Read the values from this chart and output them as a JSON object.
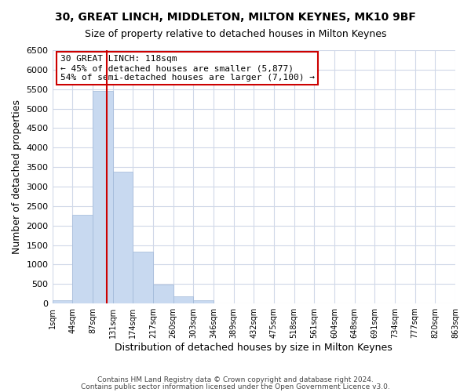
{
  "title": "30, GREAT LINCH, MIDDLETON, MILTON KEYNES, MK10 9BF",
  "subtitle": "Size of property relative to detached houses in Milton Keynes",
  "xlabel": "Distribution of detached houses by size in Milton Keynes",
  "ylabel": "Number of detached properties",
  "bar_color": "#c8d9f0",
  "bar_edge_color": "#a0b8d8",
  "bin_labels": [
    "1sqm",
    "44sqm",
    "87sqm",
    "131sqm",
    "174sqm",
    "217sqm",
    "260sqm",
    "303sqm",
    "346sqm",
    "389sqm",
    "432sqm",
    "475sqm",
    "518sqm",
    "561sqm",
    "604sqm",
    "648sqm",
    "691sqm",
    "734sqm",
    "777sqm",
    "820sqm",
    "863sqm"
  ],
  "bar_heights": [
    80,
    2280,
    5450,
    3380,
    1320,
    480,
    185,
    80,
    0,
    0,
    0,
    0,
    0,
    0,
    0,
    0,
    0,
    0,
    0,
    0
  ],
  "ylim": [
    0,
    6500
  ],
  "yticks": [
    0,
    500,
    1000,
    1500,
    2000,
    2500,
    3000,
    3500,
    4000,
    4500,
    5000,
    5500,
    6000,
    6500
  ],
  "marker_label": "30 GREAT LINCH: 118sqm",
  "annotation_line1": "← 45% of detached houses are smaller (5,877)",
  "annotation_line2": "54% of semi-detached houses are larger (7,100) →",
  "annotation_box_color": "#ffffff",
  "annotation_box_edge": "#cc0000",
  "marker_line_color": "#cc0000",
  "background_color": "#ffffff",
  "grid_color": "#d0d8e8",
  "footer1": "Contains HM Land Registry data © Crown copyright and database right 2024.",
  "footer2": "Contains public sector information licensed under the Open Government Licence v3.0."
}
